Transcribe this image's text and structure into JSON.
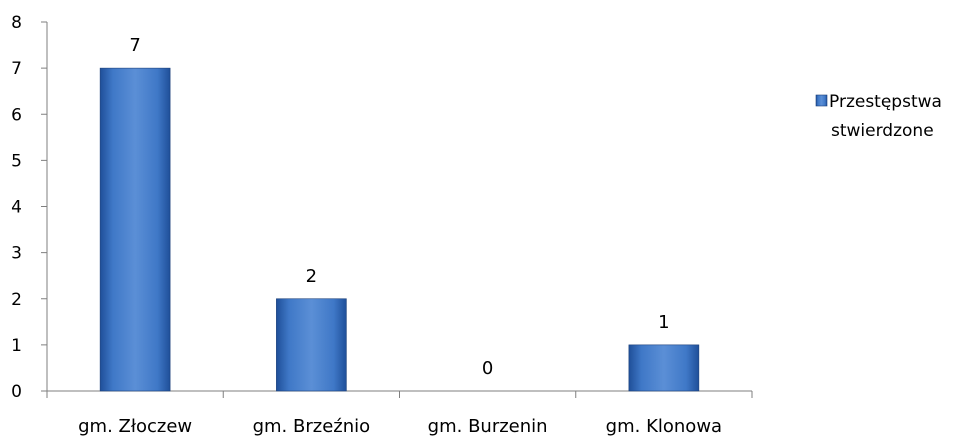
{
  "chart_data": {
    "type": "bar",
    "categories": [
      "gm. Złoczew",
      "gm. Brzeźnio",
      "gm. Burzenin",
      "gm. Klonowa"
    ],
    "series": [
      {
        "name": "Przestępstwa stwierdzone",
        "values": [
          7,
          2,
          0,
          1
        ]
      }
    ],
    "legend": {
      "lines": [
        "Przestępstwa",
        "stwierdzone"
      ],
      "position": "right"
    },
    "ylim": [
      0,
      8
    ],
    "yticks": [
      0,
      1,
      2,
      3,
      4,
      5,
      6,
      7,
      8
    ],
    "title": "",
    "xlabel": "",
    "ylabel": "",
    "grid": false,
    "data_labels": true,
    "colors": {
      "bar_light": "#5b8fd6",
      "bar_mid": "#3f78c7",
      "bar_dark": "#1f4f99",
      "axis": "#7f7f7f"
    }
  }
}
